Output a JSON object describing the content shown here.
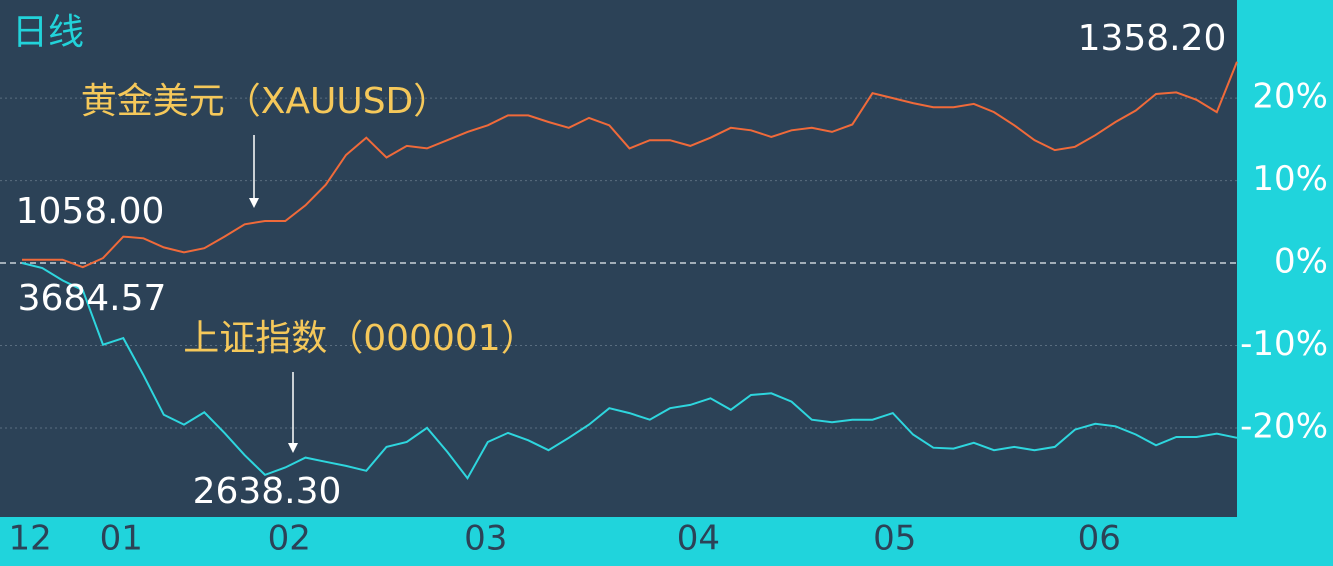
{
  "chart_data": {
    "type": "line",
    "title": "日线",
    "x": [
      0,
      1,
      2,
      3,
      4,
      5,
      6,
      7,
      8,
      9,
      10,
      11,
      12,
      13,
      14,
      15,
      16,
      17,
      18,
      19,
      20,
      21,
      22,
      23,
      24,
      25,
      26,
      27,
      28,
      29,
      30,
      31,
      32,
      33,
      34,
      35,
      36,
      37,
      38,
      39,
      40,
      41,
      42,
      43,
      44,
      45,
      46,
      47,
      48,
      49,
      50,
      51,
      52,
      53,
      54,
      55,
      56,
      57,
      58,
      59,
      60
    ],
    "xlim": [
      0,
      60
    ],
    "xticks": [
      {
        "value": 0.4,
        "label": "12"
      },
      {
        "value": 4.9,
        "label": "01"
      },
      {
        "value": 13.2,
        "label": "02"
      },
      {
        "value": 22.9,
        "label": "03"
      },
      {
        "value": 33.4,
        "label": "04"
      },
      {
        "value": 43.1,
        "label": "05"
      },
      {
        "value": 53.2,
        "label": "06"
      }
    ],
    "ylim": [
      -30.8,
      31.9
    ],
    "yticks": [
      {
        "value": -20,
        "label": "-20%"
      },
      {
        "value": -10,
        "label": "-10%"
      },
      {
        "value": 0,
        "label": "0%"
      },
      {
        "value": 10,
        "label": "10%"
      },
      {
        "value": 20,
        "label": "20%"
      }
    ],
    "grid": true,
    "series": [
      {
        "name": "黄金美元（XAUUSD）",
        "color": "#f06a3a",
        "label_color": "#f5c85a",
        "values": [
          0.4,
          0.4,
          0.4,
          -0.5,
          0.6,
          3.2,
          3.0,
          1.9,
          1.3,
          1.8,
          3.2,
          4.7,
          5.1,
          5.1,
          7.0,
          9.5,
          13.1,
          15.2,
          12.8,
          14.2,
          13.9,
          14.9,
          15.9,
          16.7,
          17.9,
          17.9,
          17.1,
          16.4,
          17.6,
          16.7,
          13.9,
          14.9,
          14.9,
          14.2,
          15.2,
          16.4,
          16.1,
          15.3,
          16.1,
          16.4,
          15.9,
          16.8,
          20.6,
          20.0,
          19.4,
          18.9,
          18.9,
          19.3,
          18.3,
          16.7,
          14.9,
          13.7,
          14.1,
          15.5,
          17.1,
          18.5,
          20.5,
          20.7,
          19.8,
          18.3,
          24.4
        ]
      },
      {
        "name": "上证指数（000001）",
        "color": "#2ed6de",
        "label_color": "#f5c85a",
        "values": [
          0,
          -0.6,
          -2.1,
          -3.3,
          -9.9,
          -9.1,
          -13.6,
          -18.4,
          -19.6,
          -18.1,
          -20.6,
          -23.3,
          -25.7,
          -24.8,
          -23.6,
          -24.1,
          -24.6,
          -25.2,
          -22.3,
          -21.7,
          -20.0,
          -22.9,
          -26.1,
          -21.7,
          -20.6,
          -21.5,
          -22.7,
          -21.2,
          -19.6,
          -17.6,
          -18.2,
          -19.0,
          -17.6,
          -17.2,
          -16.4,
          -17.8,
          -16.0,
          -15.8,
          -16.8,
          -19.0,
          -19.3,
          -19.0,
          -19.0,
          -18.2,
          -20.8,
          -22.4,
          -22.5,
          -21.8,
          -22.7,
          -22.3,
          -22.7,
          -22.3,
          -20.2,
          -19.5,
          -19.8,
          -20.8,
          -22.1,
          -21.1,
          -21.1,
          -20.7,
          -21.2
        ]
      }
    ],
    "annotations": [
      "1358.20",
      "1058.00",
      "3684.57",
      "2638.30"
    ]
  }
}
